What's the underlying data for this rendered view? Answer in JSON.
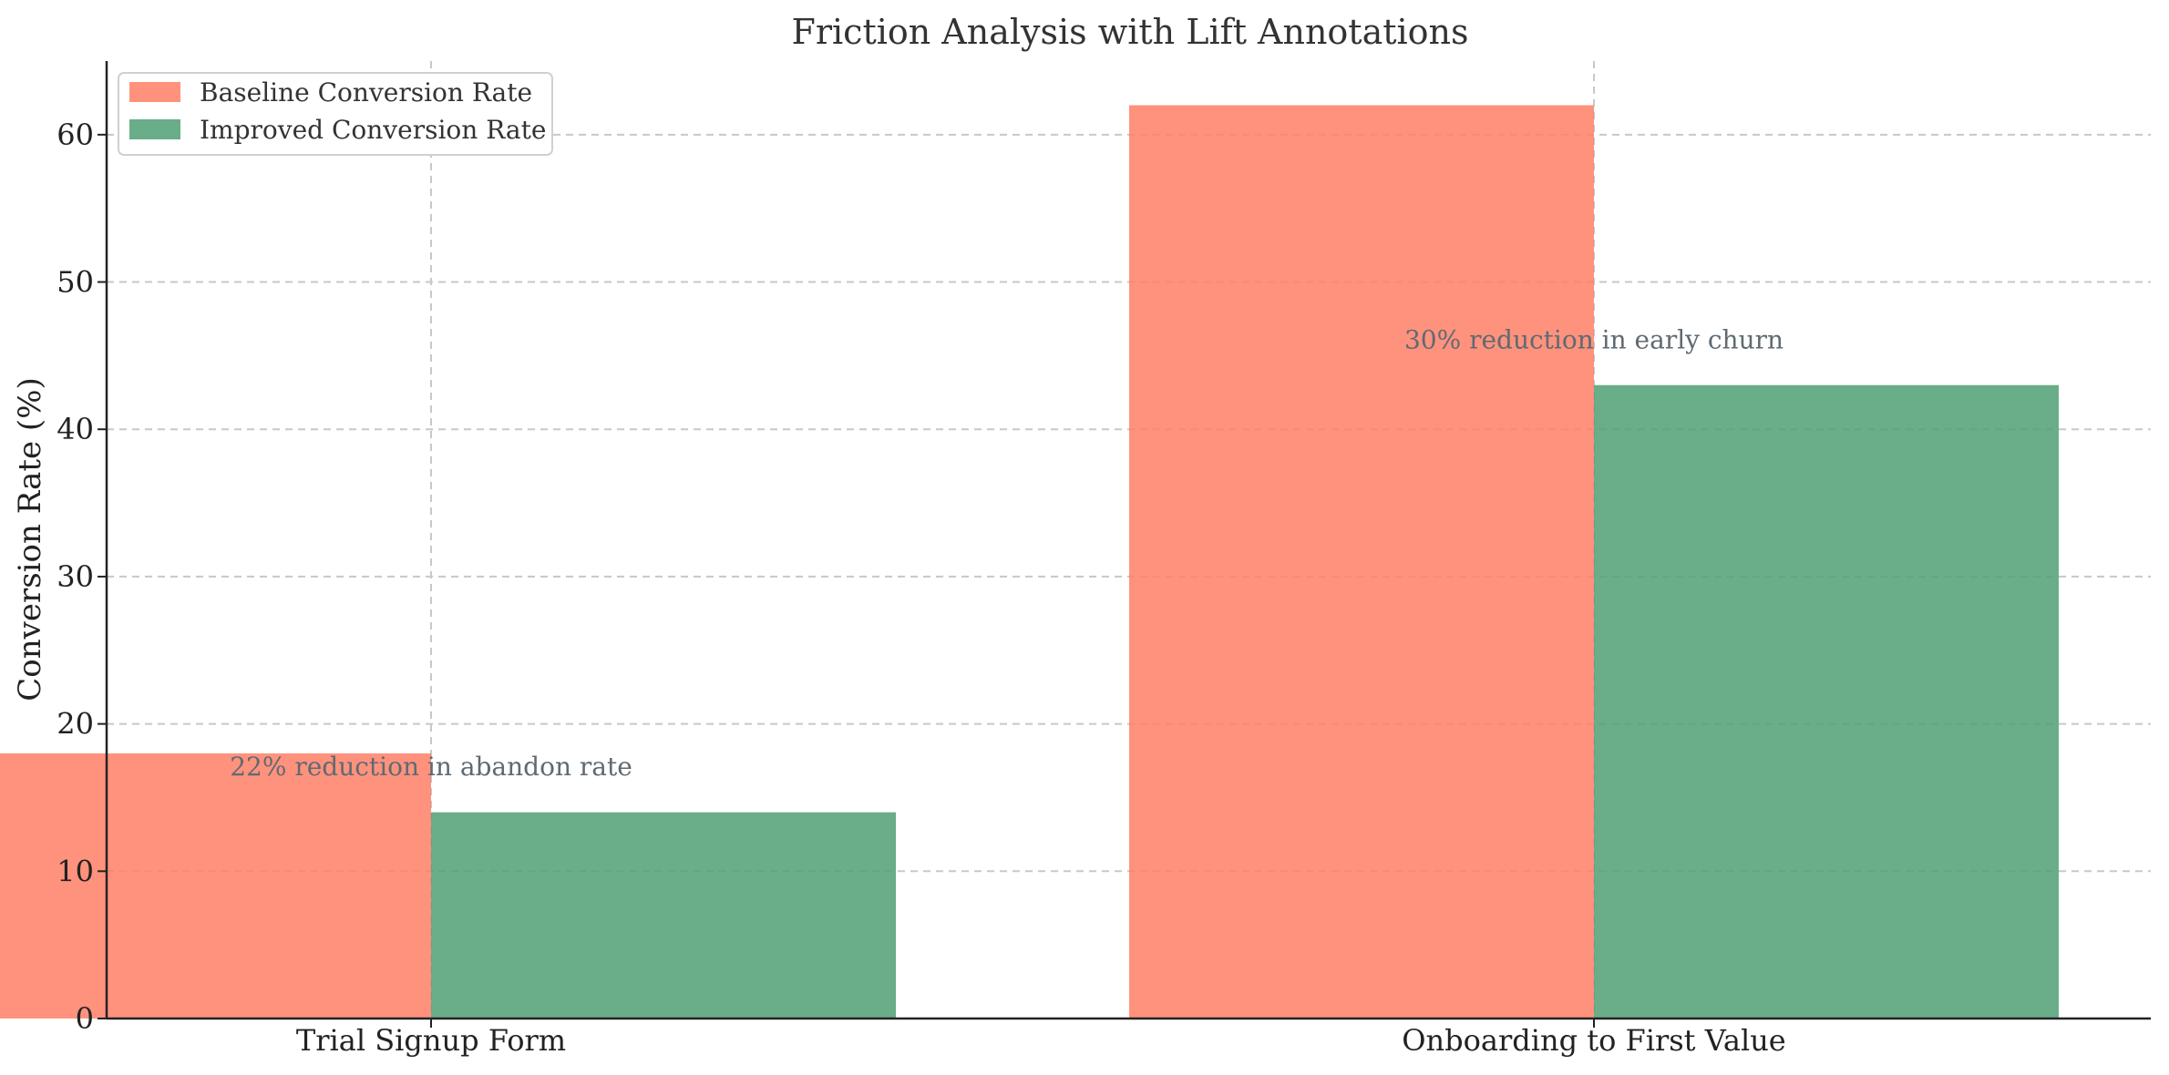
{
  "chart_data": {
    "type": "bar",
    "title": "Friction Analysis with Lift Annotations",
    "xlabel": "",
    "ylabel": "Conversion Rate (%)",
    "ylim": [
      0,
      65
    ],
    "yticks": [
      0,
      10,
      20,
      30,
      40,
      50,
      60
    ],
    "categories": [
      "Trial Signup Form",
      "Onboarding to First Value"
    ],
    "series": [
      {
        "name": "Baseline Conversion Rate",
        "values": [
          18,
          62
        ],
        "color": "#ff7f66"
      },
      {
        "name": "Improved Conversion Rate",
        "values": [
          14,
          43
        ],
        "color": "#4f9f74"
      }
    ],
    "annotations": [
      {
        "text": "22% reduction in abandon rate",
        "category": "Trial Signup Form",
        "y": 16.5
      },
      {
        "text": "30% reduction in early churn",
        "category": "Onboarding to First Value",
        "y": 45.5
      }
    ],
    "grid": true,
    "legend": "top-left"
  }
}
